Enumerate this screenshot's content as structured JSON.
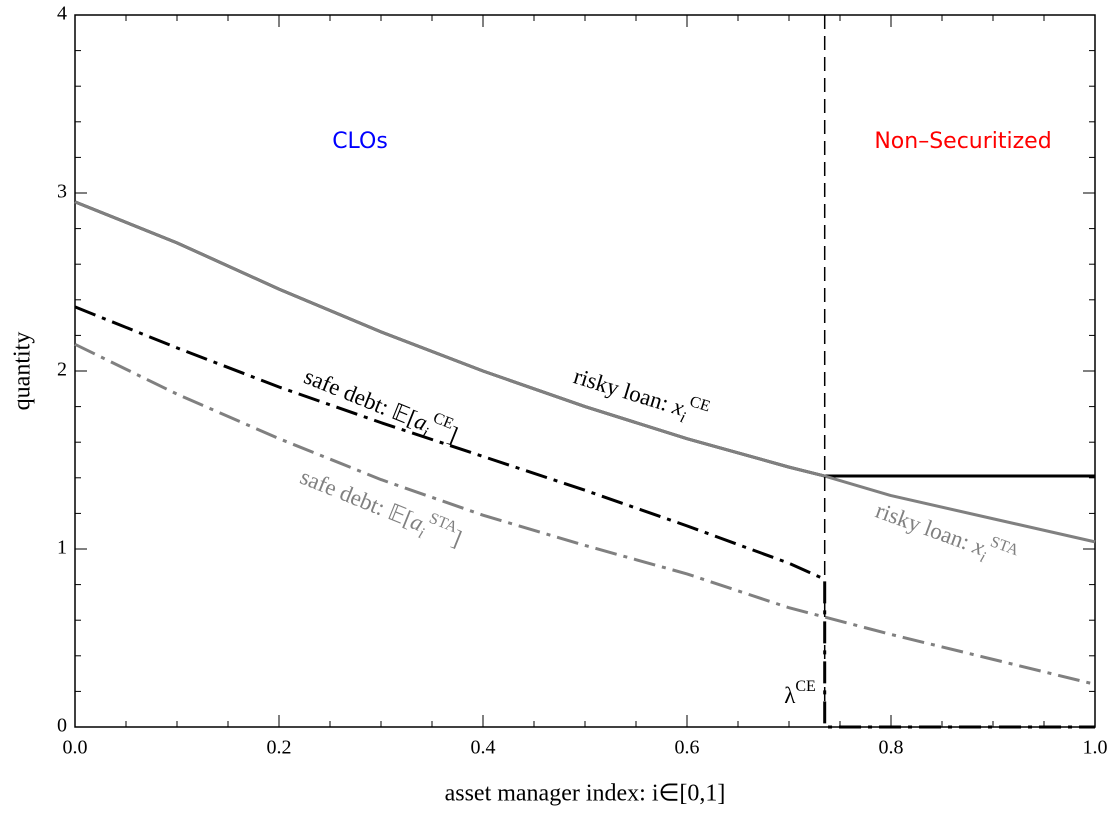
{
  "chart_data": {
    "type": "line",
    "xlabel": "asset manager index: i∈[0,1]",
    "ylabel": "quantity",
    "xlim": [
      0,
      1
    ],
    "ylim": [
      0,
      4
    ],
    "xticks": [
      {
        "value": 0,
        "label": "0.0"
      },
      0.2,
      0.4,
      0.6,
      0.8,
      {
        "value": 1,
        "label": "1.0"
      }
    ],
    "yticks": [
      0,
      1,
      2,
      3,
      4
    ],
    "xminorticks": [
      0.05,
      0.1,
      0.15,
      0.25,
      0.3,
      0.35,
      0.45,
      0.5,
      0.55,
      0.65,
      0.7,
      0.75,
      0.85,
      0.9,
      0.95
    ],
    "yminorticks": [
      0.2,
      0.4,
      0.6,
      0.8,
      1.2,
      1.4,
      1.6,
      1.8,
      2.2,
      2.4,
      2.6,
      2.8,
      3.2,
      3.4,
      3.6,
      3.8
    ],
    "vline": 0.735,
    "series": [
      {
        "color": "#000000",
        "dash": "solid",
        "x": [
          0,
          0.1,
          0.2,
          0.3,
          0.4,
          0.5,
          0.6,
          0.7,
          0.735,
          1.0
        ],
        "values": [
          2.95,
          2.72,
          2.46,
          2.22,
          2.0,
          1.8,
          1.62,
          1.46,
          1.41,
          1.41
        ]
      },
      {
        "color": "#808080",
        "dash": "solid",
        "x": [
          0,
          0.1,
          0.2,
          0.3,
          0.4,
          0.5,
          0.6,
          0.7,
          0.735,
          0.8,
          0.9,
          1.0
        ],
        "values": [
          2.95,
          2.72,
          2.46,
          2.22,
          2.0,
          1.8,
          1.62,
          1.46,
          1.41,
          1.3,
          1.17,
          1.04
        ]
      },
      {
        "color": "#000000",
        "dash": "dashdot",
        "x": [
          0,
          0.1,
          0.2,
          0.3,
          0.4,
          0.5,
          0.6,
          0.7,
          0.735,
          0.735,
          1.0
        ],
        "values": [
          2.36,
          2.13,
          1.91,
          1.71,
          1.52,
          1.33,
          1.13,
          0.92,
          0.83,
          0,
          0
        ]
      },
      {
        "color": "#808080",
        "dash": "dashdot",
        "x": [
          0,
          0.1,
          0.2,
          0.3,
          0.4,
          0.5,
          0.6,
          0.7,
          0.8,
          0.9,
          1.0
        ],
        "values": [
          2.15,
          1.87,
          1.62,
          1.39,
          1.19,
          1.02,
          0.86,
          0.67,
          0.52,
          0.38,
          0.24
        ]
      }
    ],
    "regions": [
      {
        "text": "CLOs",
        "color": "#0000ff"
      },
      {
        "text": "Non–Securitized",
        "color": "#ff0000"
      }
    ],
    "annotations": [
      {
        "prefix": "risky loan: ",
        "var": "x",
        "sub": "i",
        "sup": "CE",
        "color": "#000000"
      },
      {
        "prefix": "safe debt: 𝔼[",
        "var": "a",
        "sub": "i",
        "sup": "CE",
        "suffix": "]",
        "color": "#000000"
      },
      {
        "prefix": "safe debt: 𝔼[",
        "var": "a",
        "sub": "i",
        "sup": "STA",
        "suffix": "]",
        "color": "#808080"
      },
      {
        "prefix": "risky loan: ",
        "var": "x",
        "sub": "i",
        "sup": "STA",
        "color": "#808080"
      },
      {
        "prefix": "λ",
        "sup": "CE",
        "color": "#000000"
      }
    ]
  }
}
